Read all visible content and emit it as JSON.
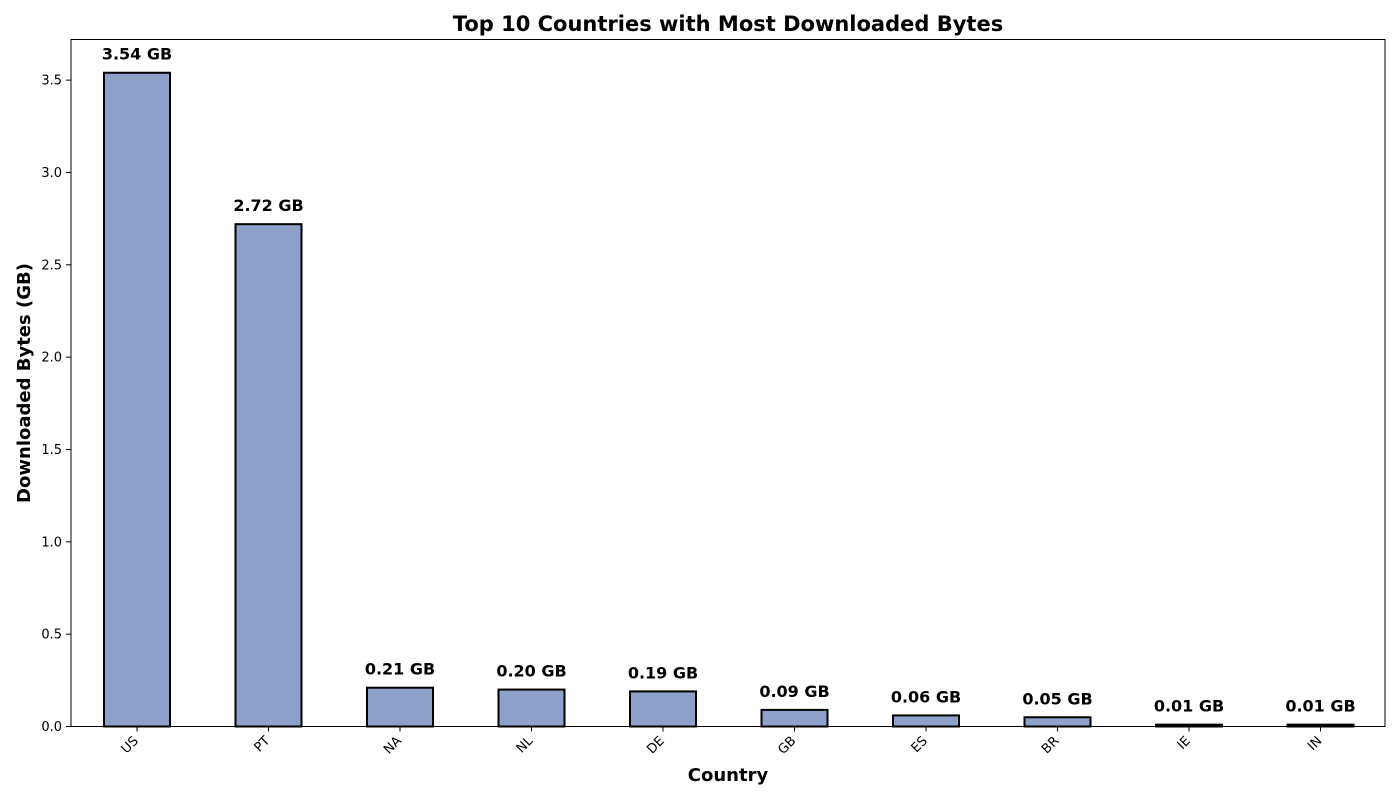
{
  "chart_data": {
    "type": "bar",
    "title": "Top 10 Countries with Most Downloaded Bytes",
    "xlabel": "Country",
    "ylabel": "Downloaded Bytes (GB)",
    "categories": [
      "US",
      "PT",
      "NA",
      "NL",
      "DE",
      "GB",
      "ES",
      "BR",
      "IE",
      "IN"
    ],
    "values": [
      3.54,
      2.72,
      0.21,
      0.2,
      0.19,
      0.09,
      0.06,
      0.05,
      0.01,
      0.01
    ],
    "data_labels": [
      "3.54 GB",
      "2.72 GB",
      "0.21 GB",
      "0.20 GB",
      "0.19 GB",
      "0.09 GB",
      "0.06 GB",
      "0.05 GB",
      "0.01 GB",
      "0.01 GB"
    ],
    "ylim": [
      0,
      3.72
    ],
    "yticks": [
      0.0,
      0.5,
      1.0,
      1.5,
      2.0,
      2.5,
      3.0,
      3.5
    ],
    "ytick_labels": [
      "0.0",
      "0.5",
      "1.0",
      "1.5",
      "2.0",
      "2.5",
      "3.0",
      "3.5"
    ],
    "grid": false,
    "colors": {
      "bar_fill": "#8ea1cb",
      "bar_edge": "#000000"
    }
  }
}
